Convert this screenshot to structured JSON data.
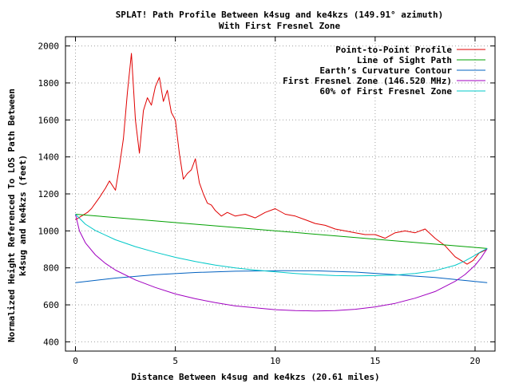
{
  "chart_data": {
    "type": "line",
    "title": "SPLAT! Path Profile Between k4sug and ke4kzs (149.91° azimuth)",
    "subtitle": "With First Fresnel Zone",
    "xlabel": "Distance Between k4sug and ke4kzs (20.61 miles)",
    "ylabel_line1": "Normalized Height Referenced To LOS Path Between",
    "ylabel_line2": "k4sug and ke4kzs (feet)",
    "xlim": [
      -0.5,
      21
    ],
    "ylim": [
      350,
      2050
    ],
    "x_ticks": [
      0,
      5,
      10,
      15,
      20
    ],
    "y_ticks": [
      400,
      600,
      800,
      1000,
      1200,
      1400,
      1600,
      1800,
      2000
    ],
    "grid": true,
    "legend_position": "top-right",
    "series": [
      {
        "name": "Point-to-Point Profile",
        "color": "#e00000",
        "x": [
          0,
          0.3,
          0.6,
          0.8,
          1.0,
          1.2,
          1.5,
          1.7,
          2.0,
          2.2,
          2.4,
          2.6,
          2.8,
          3.0,
          3.2,
          3.4,
          3.6,
          3.8,
          4.0,
          4.2,
          4.4,
          4.6,
          4.8,
          5.0,
          5.2,
          5.4,
          5.6,
          5.8,
          6.0,
          6.2,
          6.4,
          6.6,
          6.8,
          7.0,
          7.3,
          7.6,
          8.0,
          8.5,
          9.0,
          9.5,
          10.0,
          10.5,
          11.0,
          11.5,
          12.0,
          12.5,
          13.0,
          13.5,
          14.0,
          14.5,
          15.0,
          15.5,
          16.0,
          16.5,
          17.0,
          17.5,
          18.0,
          18.5,
          19.0,
          19.3,
          19.6,
          19.9,
          20.2,
          20.6
        ],
        "values": [
          1060,
          1080,
          1100,
          1120,
          1150,
          1180,
          1230,
          1270,
          1220,
          1350,
          1500,
          1750,
          1960,
          1600,
          1420,
          1650,
          1720,
          1680,
          1780,
          1830,
          1700,
          1760,
          1640,
          1600,
          1420,
          1280,
          1310,
          1330,
          1390,
          1260,
          1200,
          1150,
          1140,
          1110,
          1080,
          1100,
          1080,
          1090,
          1070,
          1100,
          1120,
          1090,
          1080,
          1060,
          1040,
          1030,
          1010,
          1000,
          990,
          980,
          980,
          960,
          990,
          1000,
          990,
          1010,
          960,
          920,
          860,
          840,
          820,
          840,
          880,
          900
        ]
      },
      {
        "name": "Line of Sight Path",
        "color": "#00a000",
        "x": [
          0,
          20.61
        ],
        "values": [
          1090,
          905
        ]
      },
      {
        "name": "Earth’s Curvature Contour",
        "color": "#0060c0",
        "x": [
          0,
          2,
          4,
          6,
          8,
          10.3,
          12,
          14,
          16,
          18,
          20.61
        ],
        "values": [
          720,
          745,
          763,
          775,
          782,
          785,
          784,
          777,
          763,
          748,
          720
        ]
      },
      {
        "name": "First Fresnel Zone (146.520 MHz)",
        "color": "#a000c0",
        "x": [
          0,
          0.2,
          0.5,
          1,
          1.5,
          2,
          3,
          4,
          5,
          6,
          7,
          8,
          9,
          10,
          11,
          12,
          13,
          14,
          15,
          16,
          17,
          18,
          19,
          19.5,
          20,
          20.3,
          20.61
        ],
        "values": [
          1090,
          1000,
          935,
          870,
          824,
          788,
          735,
          694,
          659,
          633,
          612,
          594,
          584,
          574,
          569,
          567,
          569,
          576,
          589,
          608,
          636,
          672,
          727,
          764,
          814,
          854,
          905
        ]
      },
      {
        "name": "60% of First Fresnel Zone",
        "color": "#00c8c8",
        "x": [
          0,
          0.5,
          1,
          2,
          3,
          4,
          5,
          6,
          7,
          8,
          9,
          10,
          11,
          12,
          13,
          14,
          15,
          16,
          17,
          18,
          19,
          19.5,
          20,
          20.3,
          20.61
        ],
        "values": [
          1090,
          1036,
          1002,
          952,
          915,
          884,
          857,
          834,
          815,
          800,
          788,
          779,
          770,
          763,
          758,
          757,
          758,
          761,
          770,
          785,
          814,
          838,
          868,
          888,
          905
        ]
      }
    ]
  }
}
